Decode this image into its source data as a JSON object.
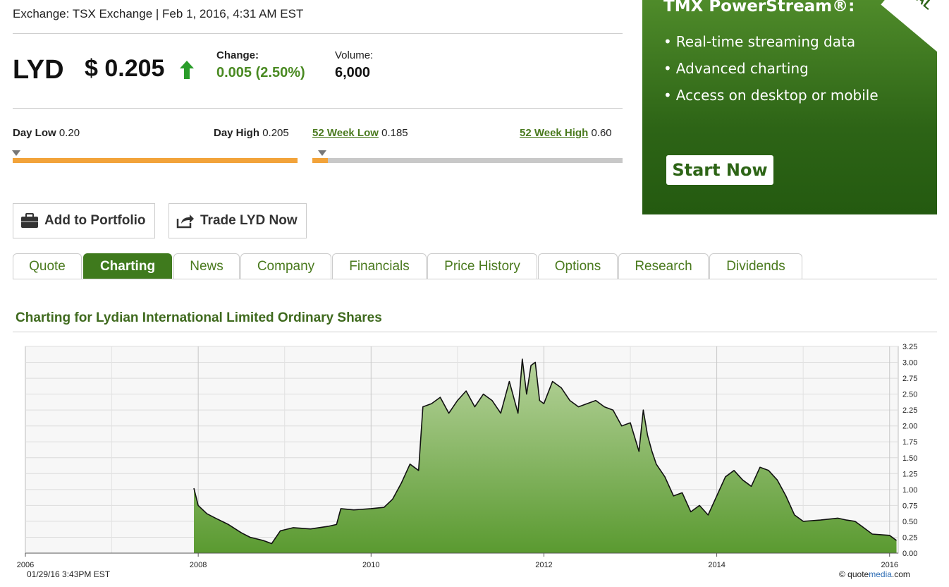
{
  "header": {
    "exchange_line": "Exchange: TSX Exchange | Feb 1, 2016, 4:31 AM EST"
  },
  "quote": {
    "symbol": "LYD",
    "price": "$ 0.205",
    "change_label": "Change:",
    "change_value": "0.005 (2.50%)",
    "volume_label": "Volume:",
    "volume_value": "6,000",
    "up_color": "#2a9d2a",
    "change_color": "#4a8a22"
  },
  "ranges": {
    "day_low_label": "Day Low",
    "day_low_value": "0.20",
    "day_high_label": "Day High",
    "day_high_value": "0.205",
    "week52_low_label": "52 Week Low",
    "week52_low_value": "0.185",
    "week52_high_label": "52 Week High",
    "week52_high_value": "0.60",
    "day_position": 0.0,
    "week52_position": 0.05,
    "bar_fill_color": "#f2a33a",
    "bar_empty_color": "#c8c8c8"
  },
  "ad": {
    "title": "TMX PowerStream®:",
    "items": [
      "Real-time streaming data",
      "Advanced charting",
      "Access on desktop or mobile"
    ],
    "button_label": "Start Now",
    "corner_text": "AL"
  },
  "actions": {
    "portfolio_label": "Add to Portfolio",
    "portfolio_icon": "briefcase-icon",
    "trade_label": "Trade LYD Now",
    "trade_icon": "share-icon"
  },
  "tabs": [
    {
      "label": "Quote",
      "active": false
    },
    {
      "label": "Charting",
      "active": true
    },
    {
      "label": "News",
      "active": false
    },
    {
      "label": "Company",
      "active": false
    },
    {
      "label": "Financials",
      "active": false
    },
    {
      "label": "Price History",
      "active": false
    },
    {
      "label": "Options",
      "active": false
    },
    {
      "label": "Research",
      "active": false
    },
    {
      "label": "Dividends",
      "active": false
    }
  ],
  "section_title": "Charting for Lydian International Limited Ordinary Shares",
  "chart_data": {
    "type": "area",
    "title": "",
    "xlabel": "",
    "ylabel": "",
    "x_ticks": [
      "2006",
      "2008",
      "2010",
      "2012",
      "2014",
      "2016"
    ],
    "y_ticks": [
      "3.25",
      "3.00",
      "2.75",
      "2.50",
      "2.25",
      "2.00",
      "1.75",
      "1.50",
      "1.25",
      "1.00",
      "0.75",
      "0.50",
      "0.25",
      "0.00"
    ],
    "xlim": [
      2006.0,
      2016.1
    ],
    "ylim": [
      0,
      3.25
    ],
    "grid": true,
    "fill_color": "#5a9a30",
    "line_color": "#111111",
    "series": [
      {
        "x": [
          2007.95,
          2008.0,
          2008.1,
          2008.2,
          2008.35,
          2008.5,
          2008.6,
          2008.75,
          2008.85,
          2008.95,
          2009.1,
          2009.3,
          2009.5,
          2009.6,
          2009.65,
          2009.8,
          2010.0,
          2010.15,
          2010.25,
          2010.35,
          2010.45,
          2010.55,
          2010.6,
          2010.7,
          2010.8,
          2010.9,
          2011.0,
          2011.1,
          2011.2,
          2011.3,
          2011.4,
          2011.5,
          2011.6,
          2011.7,
          2011.75,
          2011.8,
          2011.85,
          2011.9,
          2011.95,
          2012.0,
          2012.1,
          2012.2,
          2012.3,
          2012.4,
          2012.5,
          2012.6,
          2012.7,
          2012.8,
          2012.9,
          2013.0,
          2013.1,
          2013.15,
          2013.2,
          2013.25,
          2013.3,
          2013.4,
          2013.5,
          2013.6,
          2013.7,
          2013.8,
          2013.9,
          2014.0,
          2014.1,
          2014.2,
          2014.3,
          2014.4,
          2014.5,
          2014.6,
          2014.7,
          2014.8,
          2014.9,
          2015.0,
          2015.2,
          2015.4,
          2015.5,
          2015.6,
          2015.7,
          2015.8,
          2016.0,
          2016.08
        ],
        "y": [
          1.02,
          0.75,
          0.62,
          0.55,
          0.45,
          0.32,
          0.25,
          0.2,
          0.15,
          0.35,
          0.4,
          0.38,
          0.42,
          0.45,
          0.7,
          0.68,
          0.7,
          0.72,
          0.85,
          1.1,
          1.4,
          1.3,
          2.3,
          2.35,
          2.45,
          2.2,
          2.4,
          2.55,
          2.3,
          2.5,
          2.4,
          2.2,
          2.7,
          2.2,
          3.05,
          2.5,
          2.95,
          3.0,
          2.4,
          2.35,
          2.7,
          2.6,
          2.4,
          2.3,
          2.35,
          2.4,
          2.3,
          2.25,
          2.0,
          2.05,
          1.6,
          2.25,
          1.85,
          1.6,
          1.4,
          1.2,
          0.9,
          0.95,
          0.65,
          0.75,
          0.6,
          0.9,
          1.2,
          1.3,
          1.15,
          1.05,
          1.35,
          1.3,
          1.15,
          0.9,
          0.6,
          0.5,
          0.52,
          0.55,
          0.52,
          0.5,
          0.4,
          0.3,
          0.28,
          0.2
        ]
      }
    ]
  },
  "chart_footer": {
    "timestamp": "01/29/16 3:43PM EST",
    "copyright_prefix": "© quote",
    "copyright_brand": "media",
    "copyright_suffix": ".com"
  }
}
